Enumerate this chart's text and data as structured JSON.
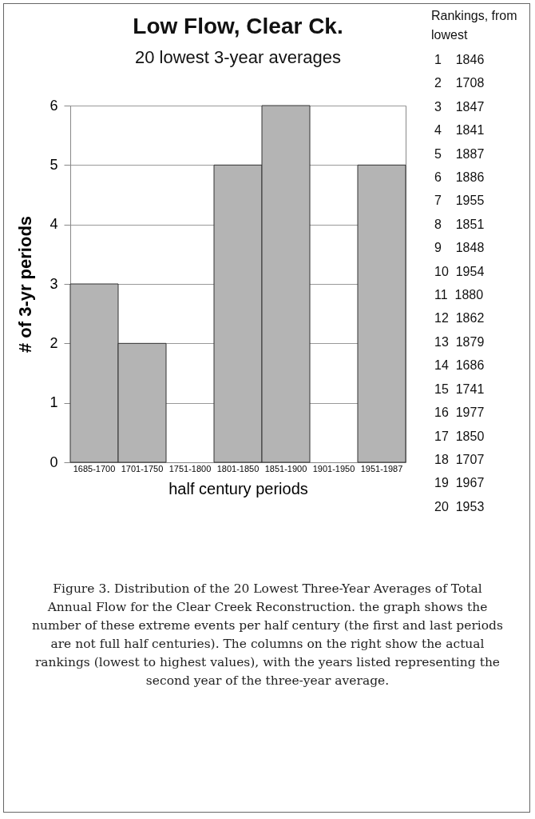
{
  "chart_data": {
    "type": "bar",
    "title": "Low Flow, Clear Ck.",
    "subtitle": "20 lowest 3-year averages",
    "xlabel": "half century periods",
    "ylabel": "# of 3-yr periods",
    "categories": [
      "1685-1700",
      "1701-1750",
      "1751-1800",
      "1801-1850",
      "1851-1900",
      "1901-1950",
      "1951-1987"
    ],
    "values": [
      3,
      2,
      0,
      5,
      6,
      0,
      5
    ],
    "color": "#b4b4b4",
    "ylim": [
      0,
      6
    ],
    "yticks": [
      0,
      1,
      2,
      3,
      4,
      5,
      6
    ],
    "grid": "y",
    "annotations": [
      "Rankings, from lowest",
      "1    1846",
      "2    1708",
      "3    1847",
      "4    1841",
      "5    1887",
      "6    1886",
      "7    1955",
      "8    1851",
      "9    1848",
      "10  1954",
      "11  1880",
      "12  1862",
      "13  1879",
      "14  1686",
      "15  1741",
      "16  1977",
      "17  1850",
      "18  1707",
      "19  1967",
      "20  1953",
      "Figure 3. Distribution of the 20 Lowest Three-Year Averages of Total Annual Flow for the Clear Creek Reconstruction. the graph shows the number of these extreme events per half century (the first and last periods are not full half centuries). The columns on the right show the actual rankings (lowest to highest values), with the years listed representing the second year of the three-year average."
    ]
  }
}
